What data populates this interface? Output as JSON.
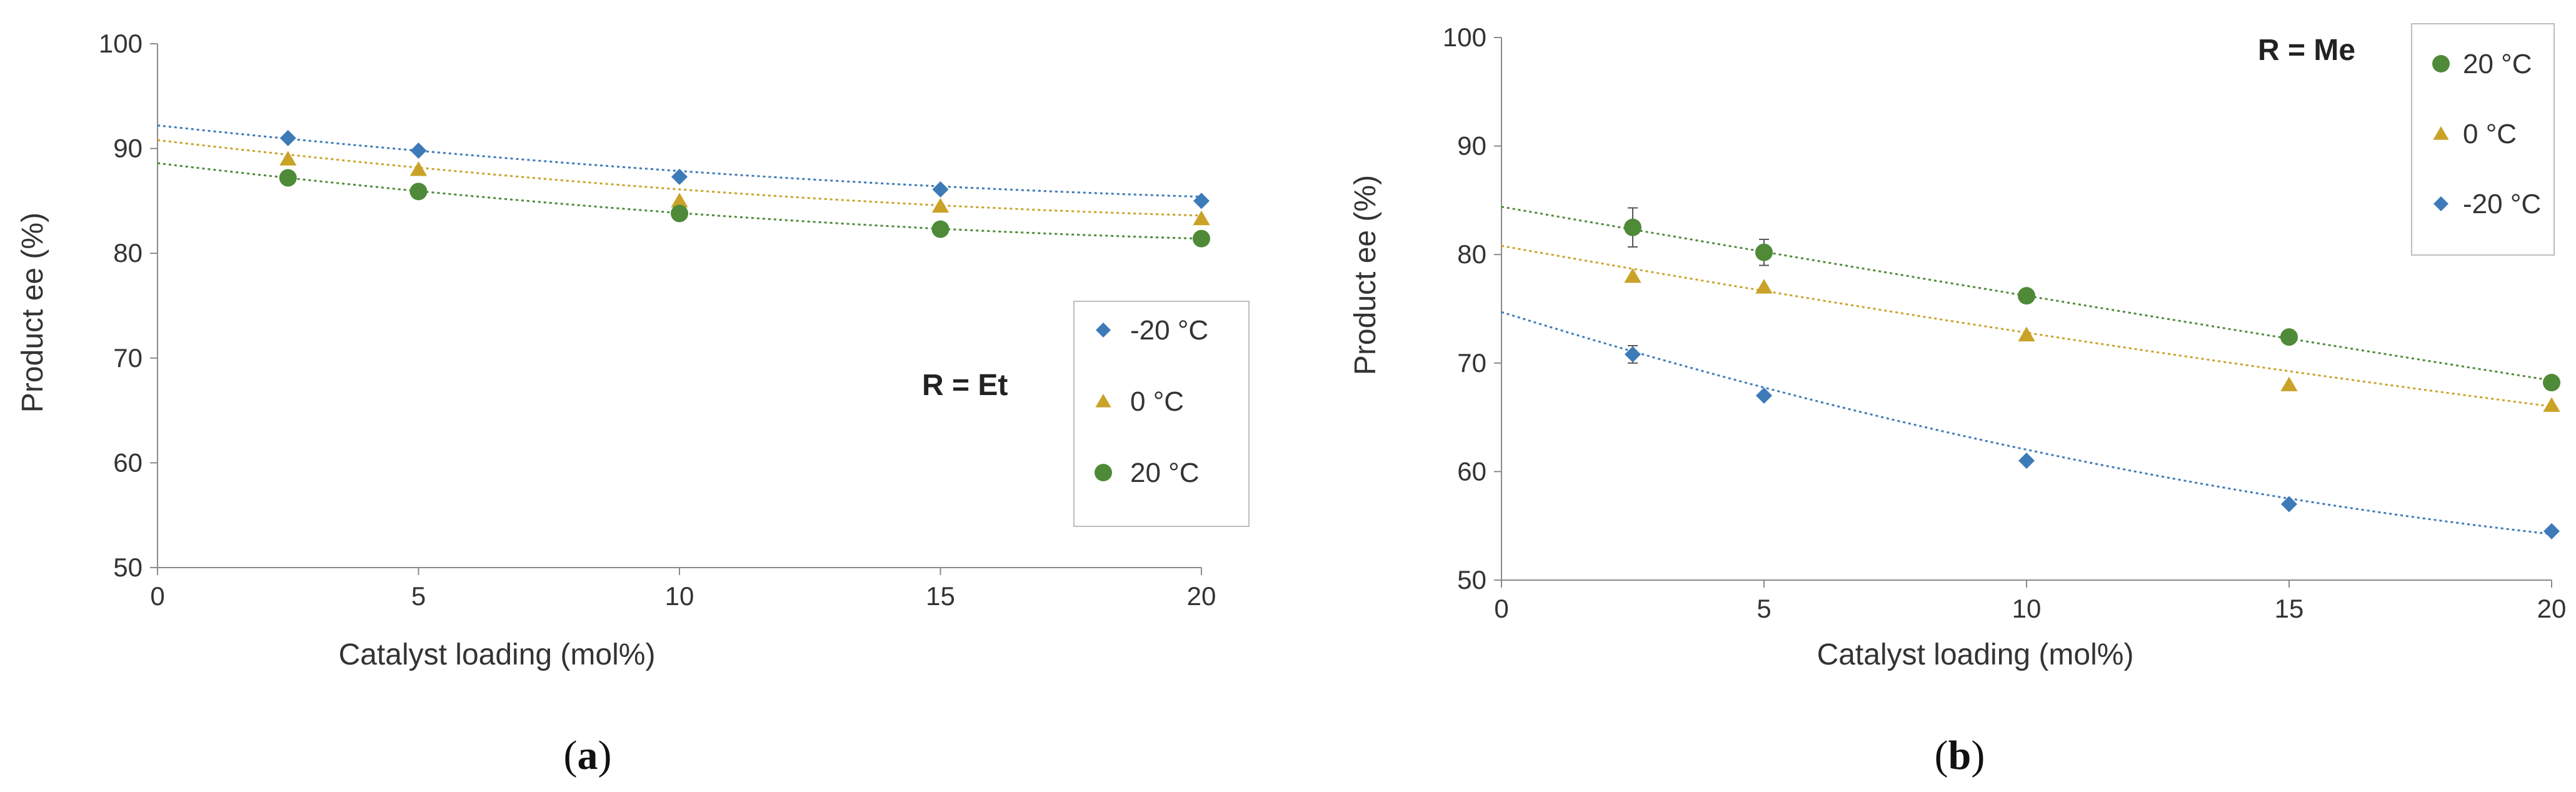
{
  "figure": {
    "panels": [
      "a",
      "b"
    ]
  },
  "chart_data": [
    {
      "type": "scatter",
      "panel": "a",
      "caption": {
        "open": "(",
        "letter": "a",
        "close": ")"
      },
      "annotation": "R = Et",
      "xlabel": "Catalyst loading (mol%)",
      "ylabel": "Product ee (%)",
      "xlim": [
        0,
        20
      ],
      "ylim": [
        50,
        100
      ],
      "xticks": [
        0,
        5,
        10,
        15,
        20
      ],
      "yticks": [
        50,
        60,
        70,
        80,
        90,
        100
      ],
      "trendline": "dotted polynomial fit",
      "series": [
        {
          "name": "-20 °C",
          "marker": "diamond",
          "color": "#3d7ab8",
          "x": [
            2.5,
            5,
            10,
            15,
            20
          ],
          "y": [
            91,
            89.8,
            87.3,
            86.1,
            85.0
          ],
          "fit": {
            "a": 0.0095,
            "b": -0.53,
            "c": 92.2
          }
        },
        {
          "name": "0 °C",
          "marker": "triangle",
          "color": "#c9a227",
          "x": [
            2.5,
            5,
            10,
            15,
            20
          ],
          "y": [
            89,
            88,
            85,
            84.5,
            83.3
          ],
          "fit": {
            "a": 0.011,
            "b": -0.58,
            "c": 90.8
          }
        },
        {
          "name": "20 °C",
          "marker": "circle",
          "color": "#4e8a37",
          "x": [
            2.5,
            5,
            10,
            15,
            20
          ],
          "y": [
            87.2,
            85.9,
            83.8,
            82.3,
            81.4
          ],
          "fit": {
            "a": 0.0115,
            "b": -0.59,
            "c": 88.6
          }
        }
      ],
      "legend_order": [
        "-20 °C",
        "0 °C",
        "20 °C"
      ]
    },
    {
      "type": "scatter",
      "panel": "b",
      "caption": {
        "open": "(",
        "letter": "b",
        "close": ")"
      },
      "annotation": "R = Me",
      "xlabel": "Catalyst loading (mol%)",
      "ylabel": "Product ee (%)",
      "xlim": [
        0,
        20
      ],
      "ylim": [
        50,
        100
      ],
      "xticks": [
        0,
        5,
        10,
        15,
        20
      ],
      "yticks": [
        50,
        60,
        70,
        80,
        90,
        100
      ],
      "trendline": "dotted polynomial fit",
      "series": [
        {
          "name": "20 °C",
          "marker": "circle",
          "color": "#4e8a37",
          "x": [
            2.5,
            5,
            10,
            15,
            20
          ],
          "y": [
            82.5,
            80.2,
            76.2,
            72.4,
            68.2
          ],
          "yerr": [
            1.8,
            1.2,
            0,
            0,
            0
          ],
          "fit": {
            "a": 0.002,
            "b": -0.84,
            "c": 84.4
          }
        },
        {
          "name": "0 °C",
          "marker": "triangle",
          "color": "#c9a227",
          "x": [
            2.5,
            5,
            10,
            15,
            20
          ],
          "y": [
            78,
            77,
            72.6,
            68,
            66.1
          ],
          "fit": {
            "a": 0.006,
            "b": -0.86,
            "c": 80.8
          }
        },
        {
          "name": "-20 °C",
          "marker": "diamond",
          "color": "#3d7ab8",
          "x": [
            2.5,
            5,
            10,
            15,
            20
          ],
          "y": [
            70.8,
            67,
            61,
            57,
            54.5
          ],
          "yerr": [
            0.8,
            0,
            0,
            0,
            0
          ],
          "fit": {
            "a": 0.0245,
            "b": -1.513,
            "c": 74.7
          }
        }
      ],
      "legend_order": [
        "20 °C",
        "0 °C",
        "-20 °C"
      ]
    }
  ]
}
